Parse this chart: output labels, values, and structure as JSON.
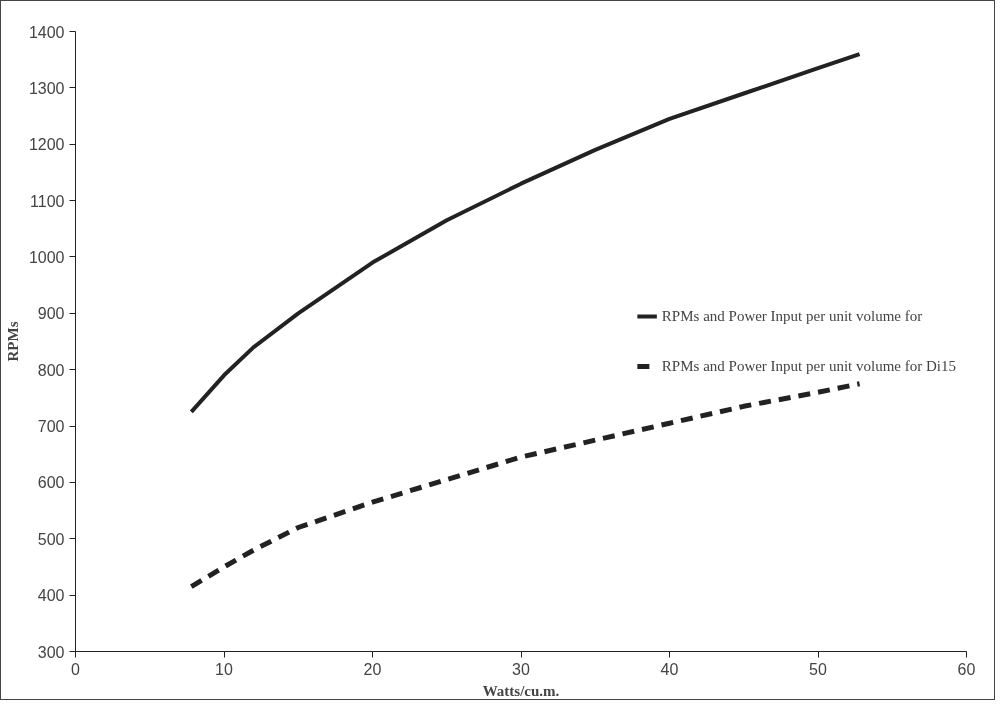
{
  "chart_data": {
    "type": "line",
    "xlabel": "Watts/cu.m.",
    "ylabel": "RPMs",
    "xlim": [
      0,
      60
    ],
    "xticks": [
      0,
      10,
      20,
      30,
      40,
      50,
      60
    ],
    "ylim": [
      300,
      1400
    ],
    "yticks": [
      300,
      400,
      500,
      600,
      700,
      800,
      900,
      1000,
      1100,
      1200,
      1300,
      1400
    ],
    "grid": false,
    "legend": "right",
    "marker": "none",
    "series": [
      {
        "name": "RPMs and Power Input per unit volume for",
        "color": "#222222",
        "line_style": "solid",
        "x": [
          7.8,
          10,
          12,
          15,
          20,
          25,
          30,
          35,
          40,
          45,
          50,
          52.8
        ],
        "values": [
          725,
          790,
          840,
          900,
          990,
          1065,
          1130,
          1190,
          1245,
          1290,
          1335,
          1360
        ]
      },
      {
        "name": "RPMs and Power Input per unit volume for Di15",
        "color": "#222222",
        "line_style": "dashed",
        "x": [
          7.8,
          10,
          12,
          15,
          20,
          25,
          30,
          35,
          40,
          45,
          50,
          52.8
        ],
        "values": [
          415,
          450,
          480,
          520,
          565,
          605,
          645,
          675,
          705,
          735,
          760,
          775
        ]
      }
    ]
  }
}
